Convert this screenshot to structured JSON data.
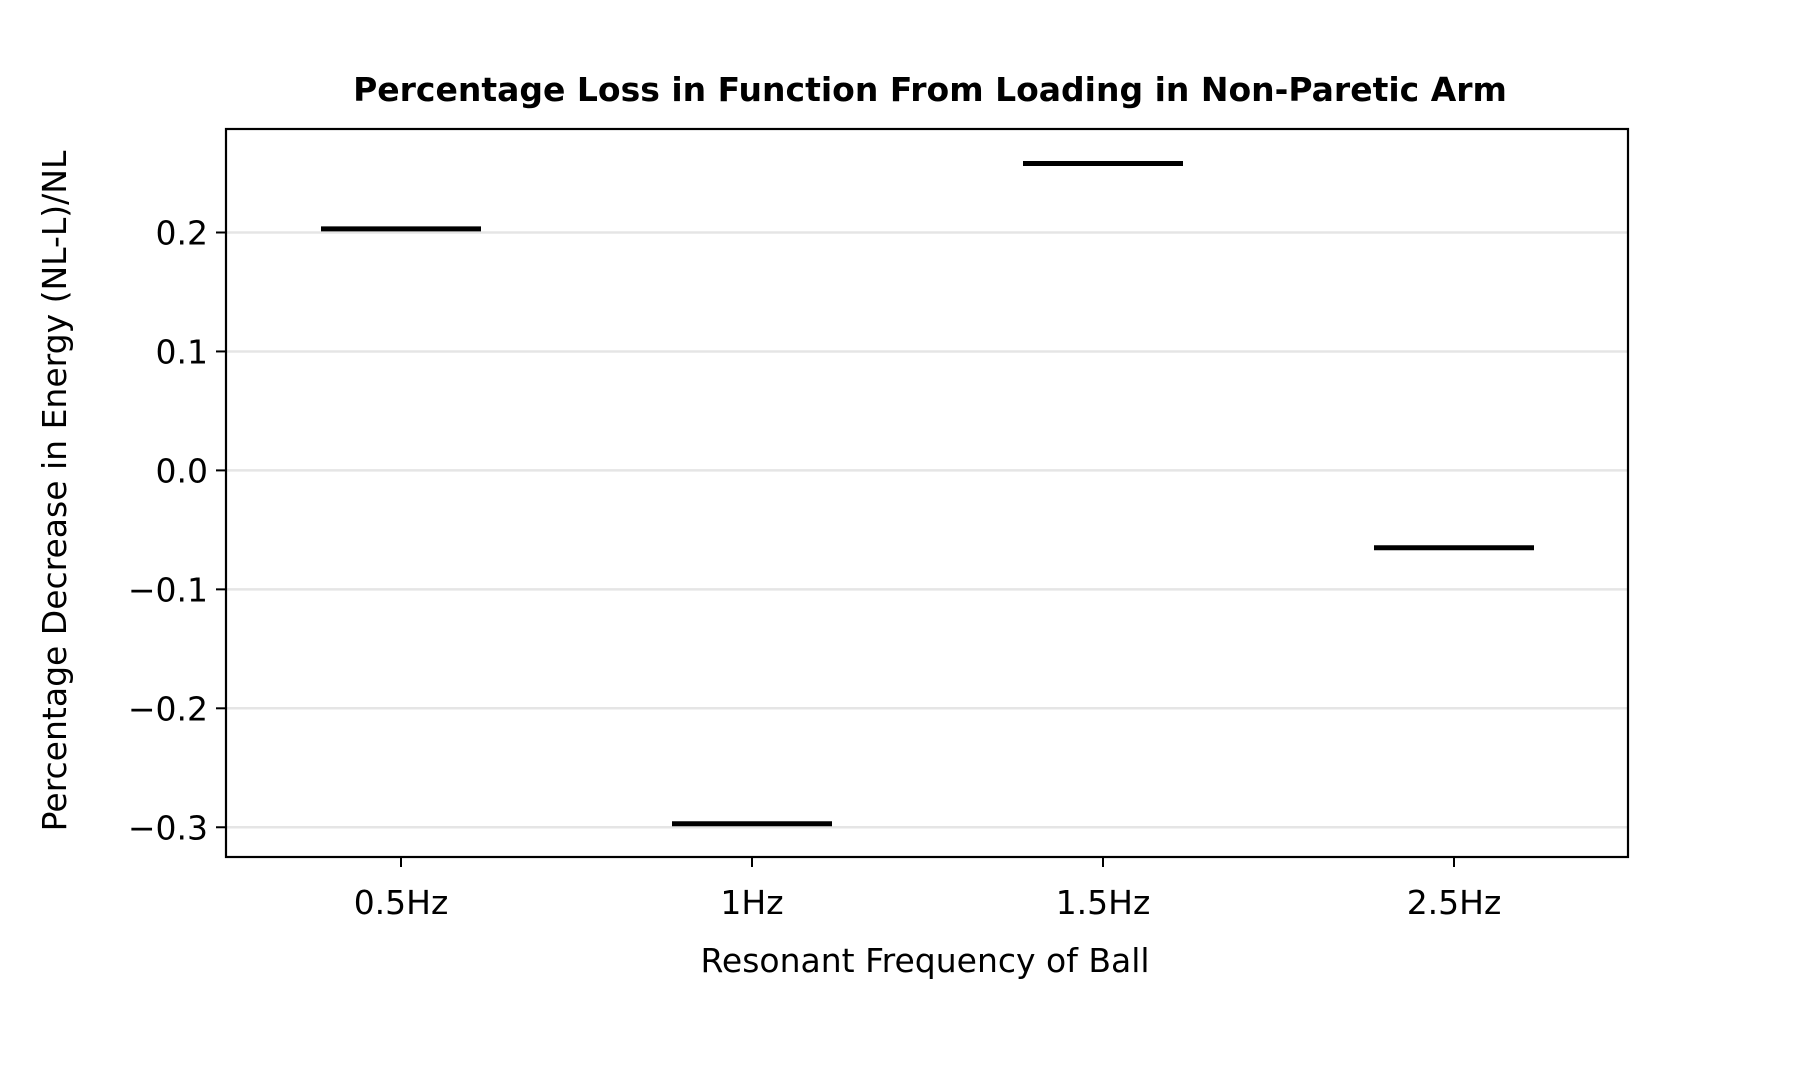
{
  "chart_data": {
    "type": "bar",
    "title": "Percentage Loss in Function From Loading in Non-Paretic Arm",
    "xlabel": "Resonant Frequency of Ball",
    "ylabel": "Percentage Decrease in Energy (NL-L)/NL",
    "categories": [
      "0.5Hz",
      "1Hz",
      "1.5Hz",
      "2.5Hz"
    ],
    "values": [
      0.203,
      -0.297,
      0.258,
      -0.065
    ],
    "ylim": [
      -0.325,
      0.287
    ],
    "yticks": [
      0.2,
      0.1,
      0.0,
      -0.1,
      -0.2,
      -0.3
    ],
    "ytick_labels": [
      "0.2",
      "0.1",
      "0.0",
      "−0.1",
      "−0.2",
      "−0.3"
    ],
    "grid": "horizontal",
    "legend": "none",
    "colors": {
      "mark": "#000000",
      "grid": "#e5e5e5",
      "frame": "#000000"
    }
  }
}
